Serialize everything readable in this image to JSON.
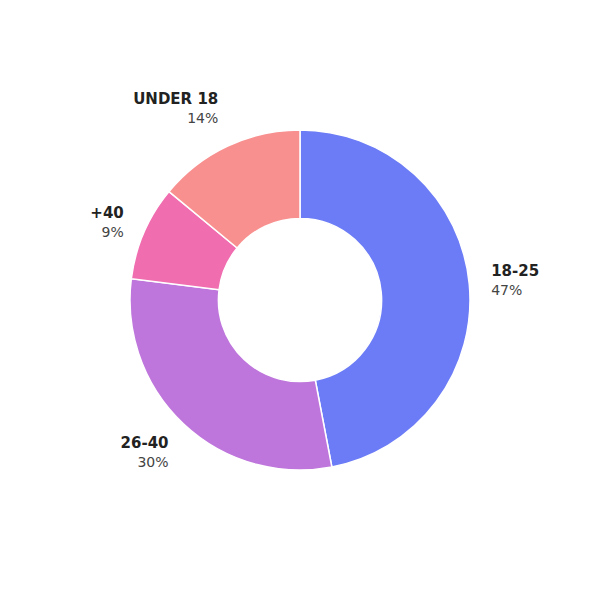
{
  "chart_data": {
    "type": "donut",
    "categories": [
      "18-25",
      "26-40",
      "+40",
      "UNDER 18"
    ],
    "values": [
      47,
      30,
      9,
      14
    ],
    "value_labels": [
      "47%",
      "30%",
      "9%",
      "14%"
    ],
    "colors": [
      "#6B7CF6",
      "#BE76DC",
      "#F06DB0",
      "#F99090"
    ],
    "data_labels": true
  }
}
